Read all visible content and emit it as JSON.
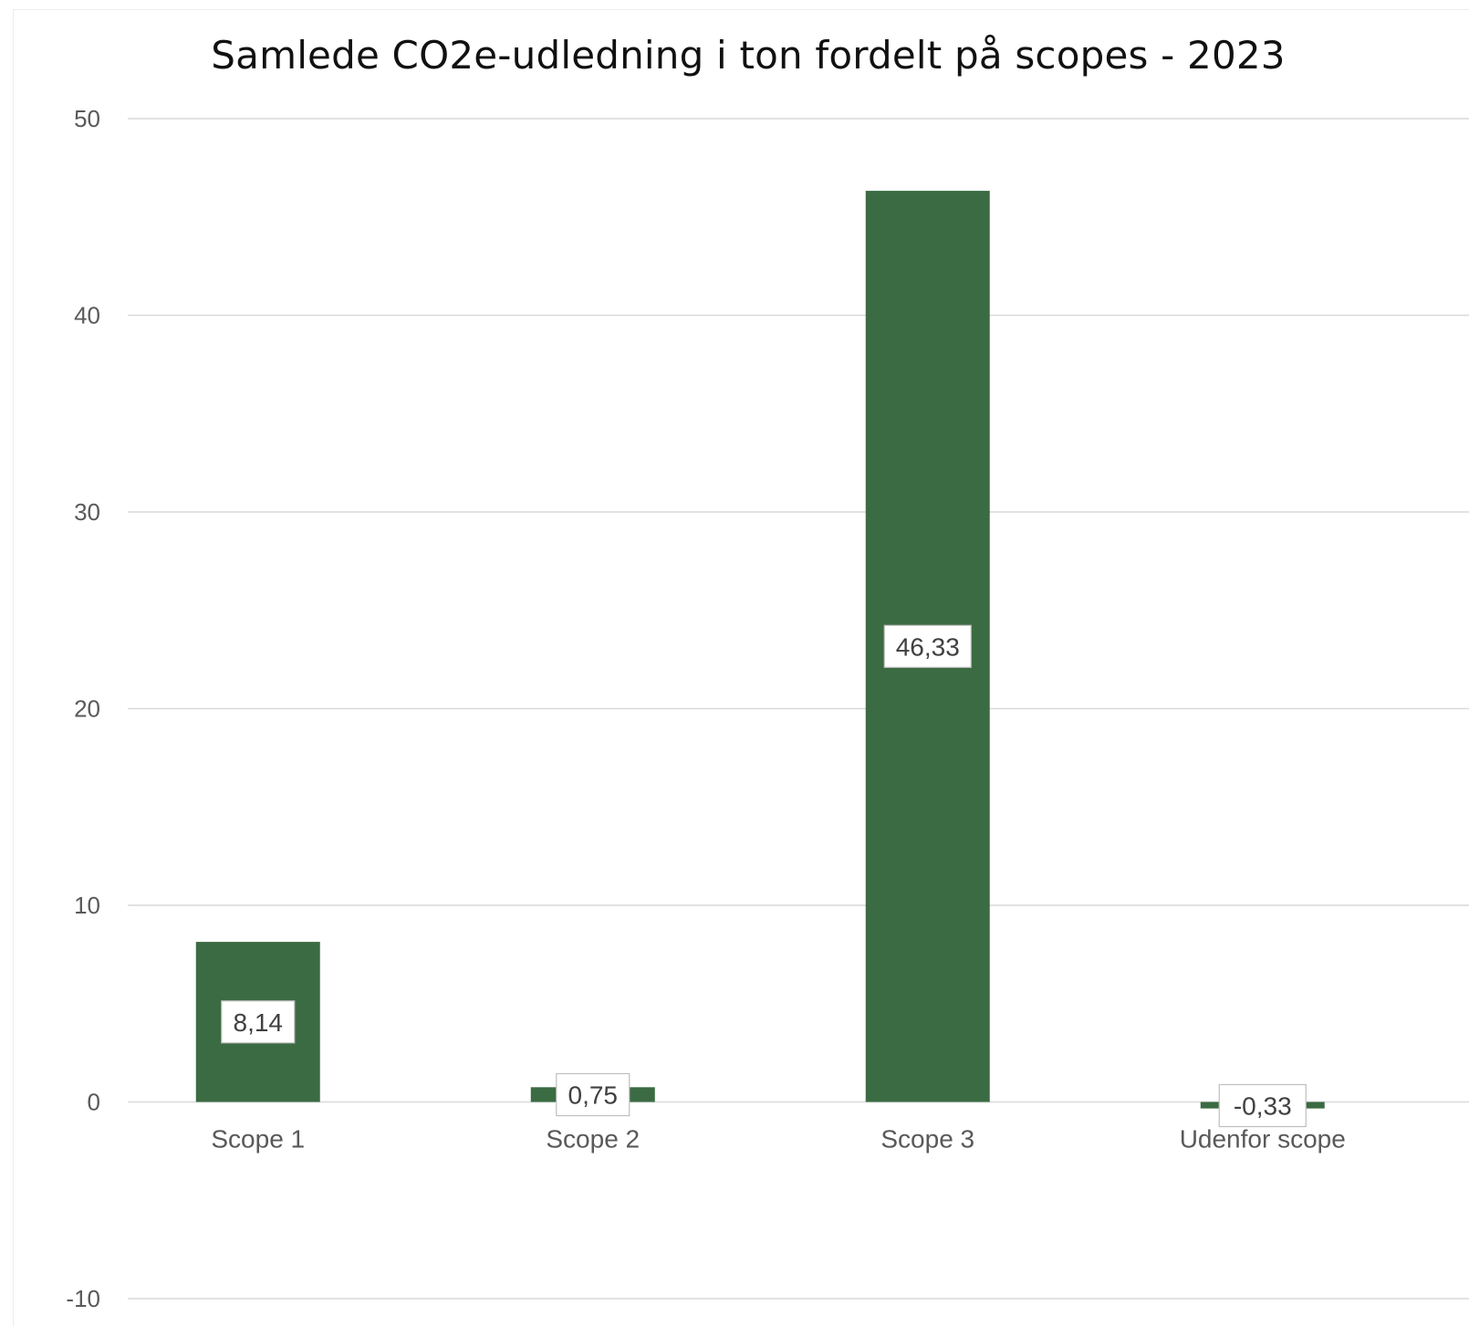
{
  "chart_data": {
    "type": "bar",
    "title": "Samlede CO2e-udledning i ton fordelt på scopes - 2023",
    "categories": [
      "Scope 1",
      "Scope 2",
      "Scope 3",
      "Udenfor scope"
    ],
    "values": [
      8.14,
      0.75,
      46.33,
      -0.33
    ],
    "data_labels": [
      "8,14",
      "0,75",
      "46,33",
      "-0,33"
    ],
    "ylim": [
      -10,
      50
    ],
    "yticks": [
      50,
      40,
      30,
      20,
      10,
      0,
      -10
    ],
    "ytick_labels": [
      "50",
      "40",
      "30",
      "20",
      "10",
      "0",
      "-10"
    ],
    "grid": true,
    "legend": "none",
    "bar_color": "#3b6b42",
    "xlabel": "",
    "ylabel": ""
  }
}
